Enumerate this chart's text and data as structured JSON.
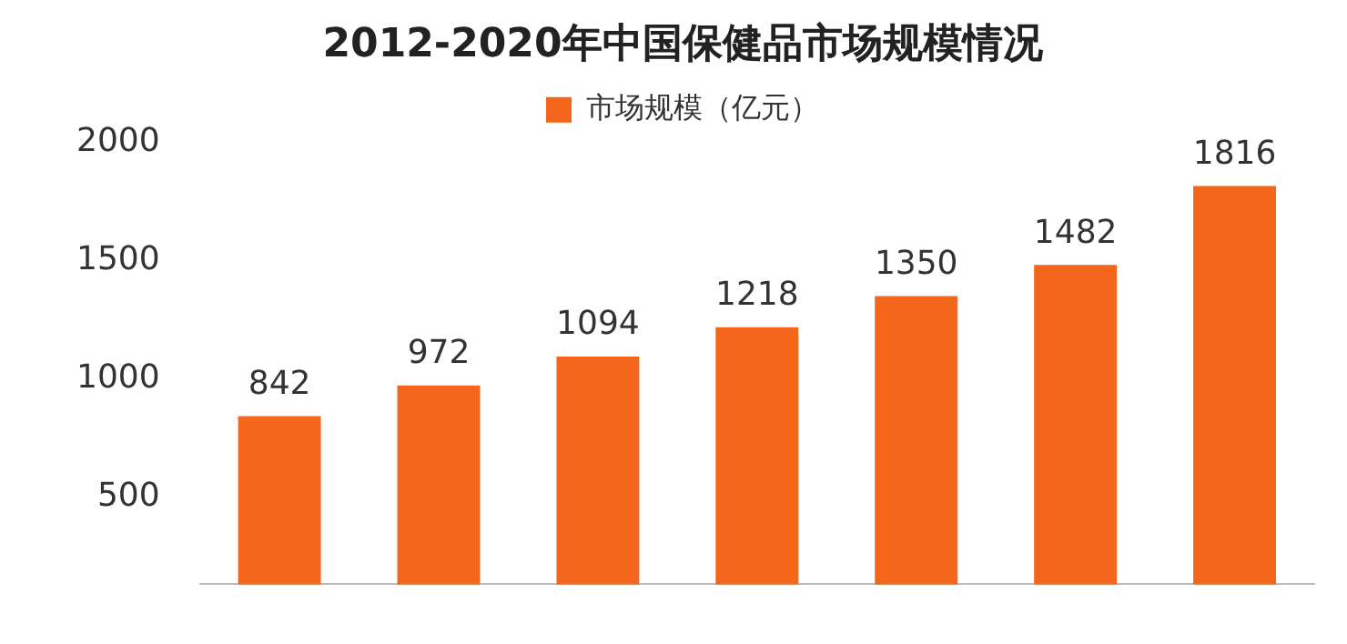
{
  "chart_data": {
    "type": "bar",
    "title": "2012-2020年中国保健品市场规模情况",
    "categories": [
      null,
      null,
      null,
      null,
      null,
      null,
      null
    ],
    "series": [
      {
        "name": "市场规模（亿元）",
        "color": "#f4661b",
        "values": [
          842,
          972,
          1094,
          1218,
          1350,
          1482,
          1816
        ]
      }
    ],
    "ylim": [
      130,
      2000
    ],
    "yticks": [
      500,
      1000,
      1500,
      2000
    ],
    "grid": false,
    "legend": "top",
    "tick_labels": "y",
    "data_labels": true
  }
}
